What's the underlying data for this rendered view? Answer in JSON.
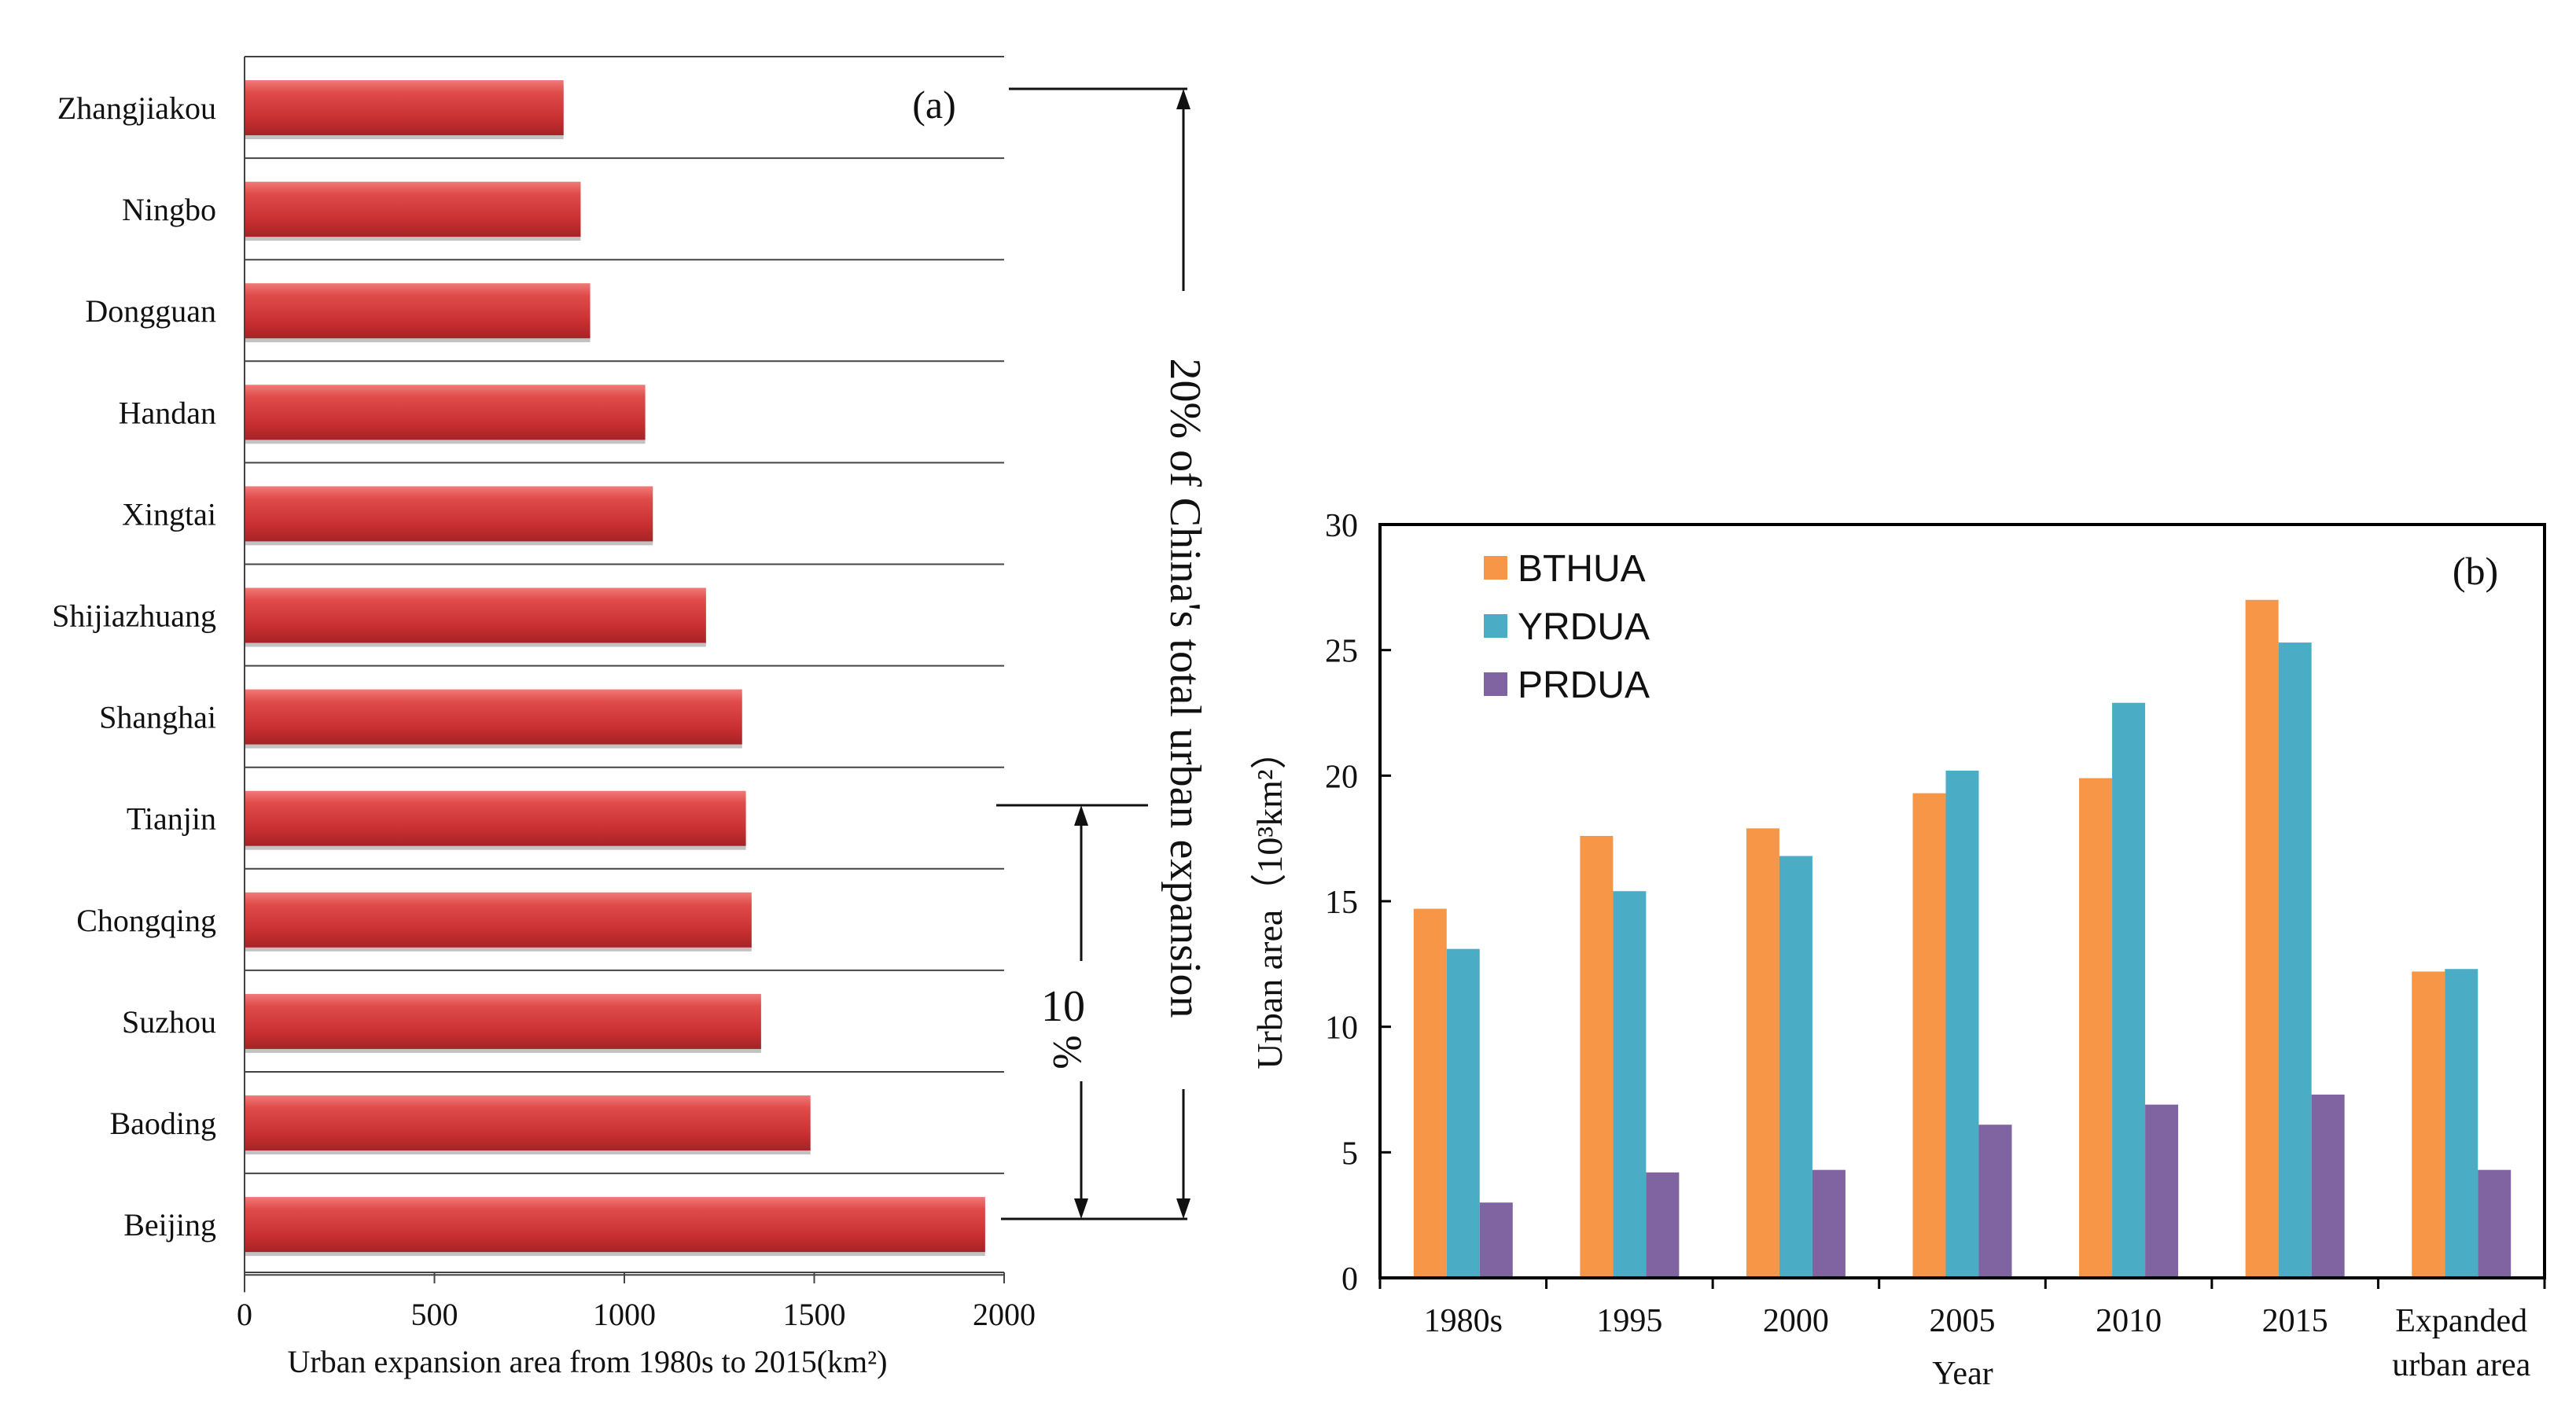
{
  "chart_data": [
    {
      "type": "bar",
      "orientation": "horizontal",
      "panel_label": "(a)",
      "categories": [
        "Zhangjiakou",
        "Ningbo",
        "Dongguan",
        "Handan",
        "Xingtai",
        "Shijiazhuang",
        "Shanghai",
        "Tianjin",
        "Chongqing",
        "Suzhou",
        "Baoding",
        "Beijing"
      ],
      "values": [
        840,
        885,
        910,
        1055,
        1075,
        1215,
        1310,
        1320,
        1335,
        1360,
        1490,
        1950
      ],
      "xlabel": "Urban expansion area from 1980s to 2015(km²)",
      "xlim": [
        0,
        2000
      ],
      "xticks": [
        "0",
        "500",
        "1000",
        "1500",
        "2000"
      ],
      "grid": "horizontal lines",
      "color": "#d2383a",
      "annotations": {
        "bracket_20": "20% of China's total urban expansion",
        "bracket_10_num": "10",
        "bracket_10_pct": "%"
      }
    },
    {
      "type": "bar",
      "orientation": "vertical",
      "panel_label": "(b)",
      "categories": [
        "1980s",
        "1995",
        "2000",
        "2005",
        "2010",
        "2015",
        "Expanded urban area"
      ],
      "category_lines": [
        [
          "1980s"
        ],
        [
          "1995"
        ],
        [
          "2000"
        ],
        [
          "2005"
        ],
        [
          "2010"
        ],
        [
          "2015"
        ],
        [
          "Expanded",
          "urban area"
        ]
      ],
      "series": [
        {
          "name": "BTHUA",
          "color": "#f79646",
          "values": [
            14.7,
            17.6,
            17.9,
            19.3,
            19.9,
            27.0,
            12.2
          ]
        },
        {
          "name": "YRDUA",
          "color": "#4bacc6",
          "values": [
            13.1,
            15.4,
            16.8,
            20.2,
            22.9,
            25.3,
            12.3
          ]
        },
        {
          "name": "PRDUA",
          "color": "#8064a2",
          "values": [
            3.0,
            4.2,
            4.3,
            6.1,
            6.9,
            7.3,
            4.3
          ]
        }
      ],
      "xlabel": "Year",
      "ylabel": "Urban area（10³km²）",
      "ylim": [
        0,
        30
      ],
      "yticks": [
        "0",
        "5",
        "10",
        "15",
        "20",
        "25",
        "30"
      ],
      "legend": "top-left",
      "grid": false
    }
  ]
}
